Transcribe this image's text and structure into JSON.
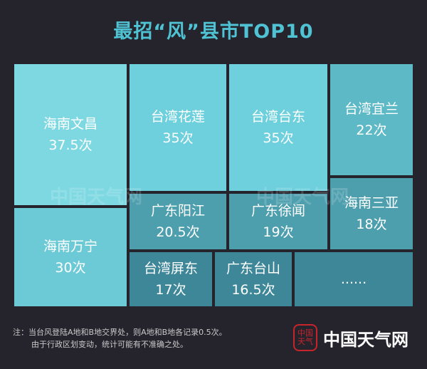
{
  "chart_data": {
    "type": "treemap",
    "title": "最招“风”县市TOP10",
    "items": [
      {
        "name": "海南文昌",
        "value_label": "37.5次",
        "value": 37.5,
        "color": "#7ed8e2"
      },
      {
        "name": "海南万宁",
        "value_label": "30次",
        "value": 30,
        "color": "#6ccad6"
      },
      {
        "name": "台湾花莲",
        "value_label": "35次",
        "value": 35,
        "color": "#6dd0dc"
      },
      {
        "name": "台湾台东",
        "value_label": "35次",
        "value": 35,
        "color": "#6dd0dc"
      },
      {
        "name": "台湾宜兰",
        "value_label": "22次",
        "value": 22,
        "color": "#5db9c6"
      },
      {
        "name": "广东阳江",
        "value_label": "20.5次",
        "value": 20.5,
        "color": "#4e9fae"
      },
      {
        "name": "广东徐闻",
        "value_label": "19次",
        "value": 19,
        "color": "#4e9fae"
      },
      {
        "name": "海南三亚",
        "value_label": "18次",
        "value": 18,
        "color": "#4e9fae"
      },
      {
        "name": "台湾屏东",
        "value_label": "17次",
        "value": 17,
        "color": "#3e8798"
      },
      {
        "name": "广东台山",
        "value_label": "16.5次",
        "value": 16.5,
        "color": "#3e8798"
      },
      {
        "name": "......",
        "value_label": "",
        "value": null,
        "color": "#3e8798"
      }
    ]
  },
  "note": {
    "line1": "注：当台风登陆A地和B地交界处，则A地和B地各记录0.5次。",
    "line2": "由于行政区划变动，统计可能有不准确之处。"
  },
  "watermark": "中国天气网",
  "logo": {
    "seal_text": "中国天气",
    "text": "中国天气网",
    "seal_color": "#c8242b"
  }
}
